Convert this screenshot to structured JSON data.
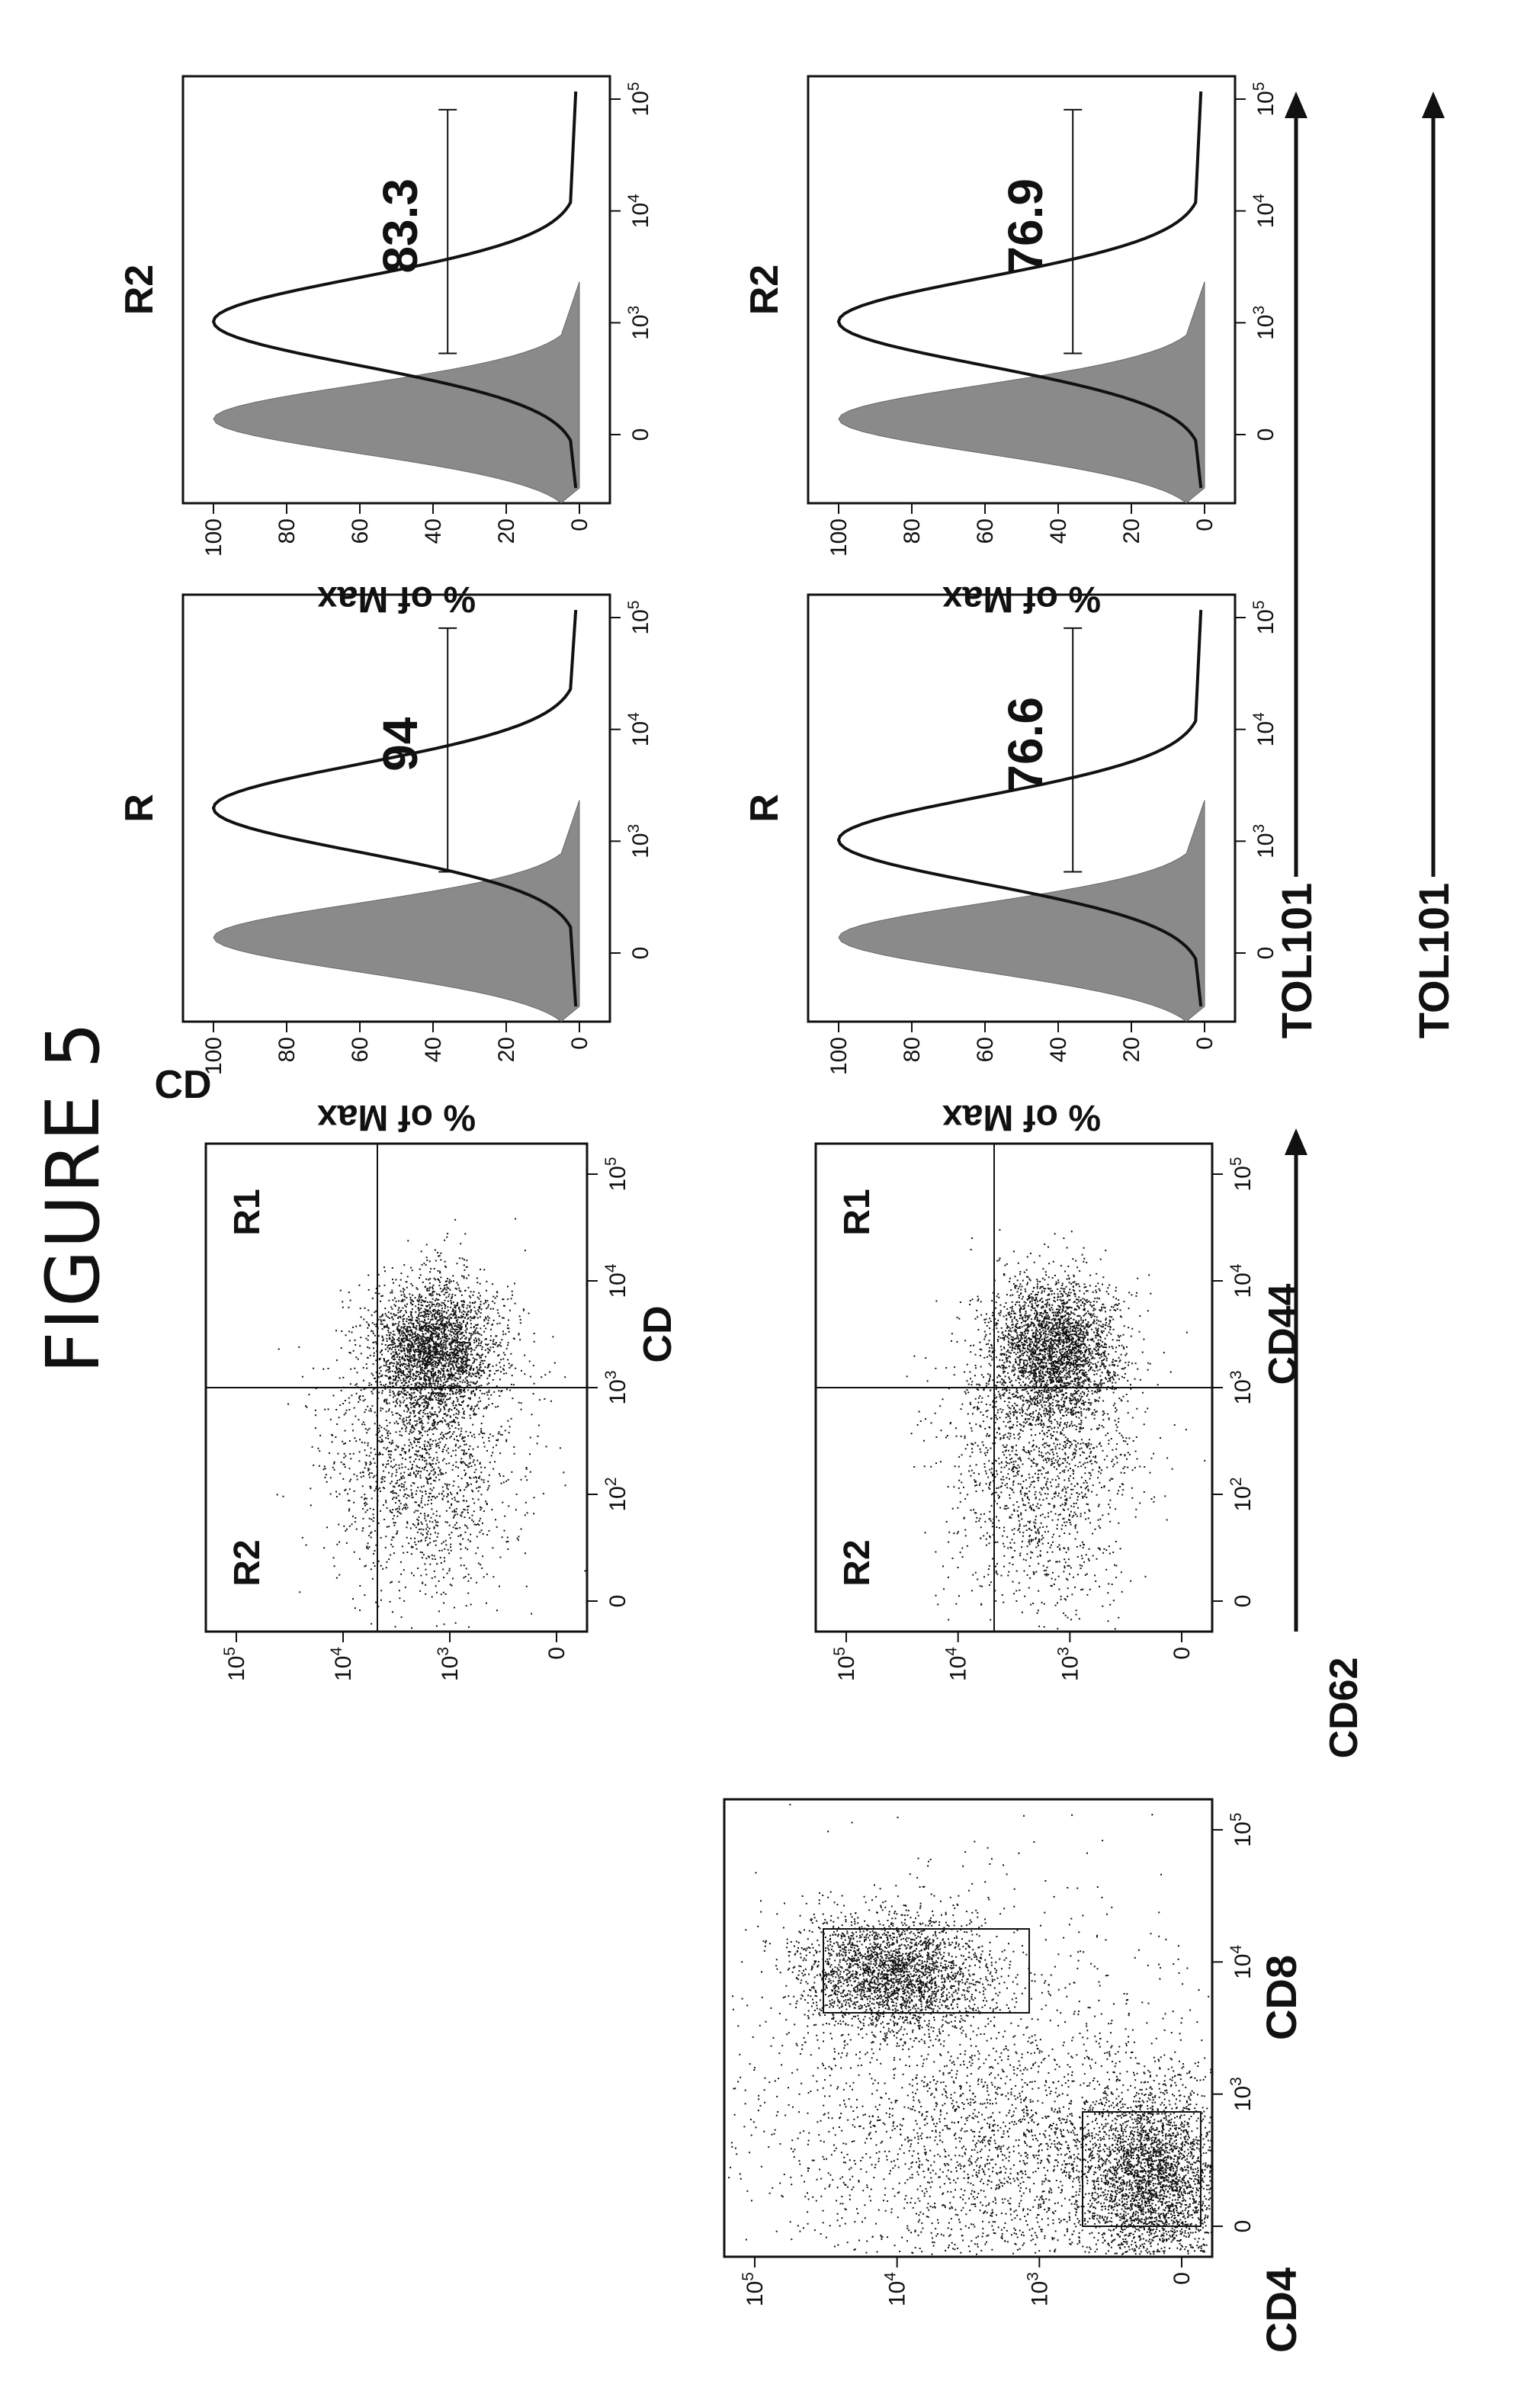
{
  "figure": {
    "title": "FIGURE 5"
  },
  "gating": {
    "x_label": "CD8",
    "y_label": "CD4",
    "x_ticks": [
      "0",
      "10^3",
      "10^4",
      "10^5"
    ],
    "y_ticks": [
      "0",
      "10^3",
      "10^4",
      "10^5"
    ]
  },
  "quadrants": {
    "arrow_label": "CD62",
    "panels": [
      {
        "title": "CD",
        "x_label": "CD",
        "r1": "R1",
        "r2": "R2",
        "x_ticks": [
          "0",
          "10^2",
          "10^3",
          "10^4",
          "10^5"
        ],
        "y_ticks": [
          "0",
          "10^3",
          "10^4",
          "10^5"
        ]
      },
      {
        "title": "",
        "x_label": "CD44",
        "r1": "R1",
        "r2": "R2",
        "x_ticks": [
          "0",
          "10^2",
          "10^3",
          "10^4",
          "10^5"
        ],
        "y_ticks": [
          "0",
          "10^3",
          "10^4",
          "10^5"
        ]
      }
    ]
  },
  "histograms": {
    "y_label": "% of Max",
    "x_label": "TOL101",
    "x_ticks": [
      "0",
      "10^3",
      "10^4",
      "10^5"
    ],
    "y_ticks": [
      "0",
      "20",
      "40",
      "60",
      "80",
      "100"
    ],
    "colors": {
      "shaded": "#8a8a8a",
      "line": "#111111"
    }
  },
  "chart_data": [
    {
      "type": "scatter",
      "xlabel": "CD8",
      "ylabel": "CD4",
      "populations": [
        {
          "gate": "CD4+",
          "x_center": 0,
          "y_center": 10000
        },
        {
          "gate": "CD8+",
          "x_center": 5000,
          "y_center": 0
        }
      ]
    },
    {
      "type": "scatter",
      "title": "CD",
      "xlabel": "CD",
      "ylabel": "CD62",
      "quadrant_x": 800,
      "quadrant_y": 400,
      "regions": [
        "R1",
        "R2"
      ]
    },
    {
      "type": "scatter",
      "title": "",
      "xlabel": "CD44",
      "ylabel": "CD62",
      "quadrant_x": 800,
      "quadrant_y": 400,
      "regions": [
        "R1",
        "R2"
      ]
    },
    {
      "type": "area",
      "title": "R",
      "xlabel": "TOL101",
      "ylabel": "% of Max",
      "ylim": [
        0,
        100
      ],
      "gate_value": 94,
      "gate_range": [
        500,
        100000
      ],
      "control_peak": 120,
      "sample_peak": 2000
    },
    {
      "type": "area",
      "title": "R2",
      "xlabel": "TOL101",
      "ylabel": "% of Max",
      "ylim": [
        0,
        100
      ],
      "gate_value": 83.3,
      "gate_range": [
        500,
        100000
      ],
      "control_peak": 120,
      "sample_peak": 1000
    },
    {
      "type": "area",
      "title": "R",
      "xlabel": "TOL101",
      "ylabel": "% of Max",
      "ylim": [
        0,
        100
      ],
      "gate_value": 76.6,
      "gate_range": [
        500,
        100000
      ],
      "control_peak": 120,
      "sample_peak": 1000
    },
    {
      "type": "area",
      "title": "R2",
      "xlabel": "TOL101",
      "ylabel": "% of Max",
      "ylim": [
        0,
        100
      ],
      "gate_value": 76.9,
      "gate_range": [
        500,
        100000
      ],
      "control_peak": 120,
      "sample_peak": 1000
    }
  ]
}
